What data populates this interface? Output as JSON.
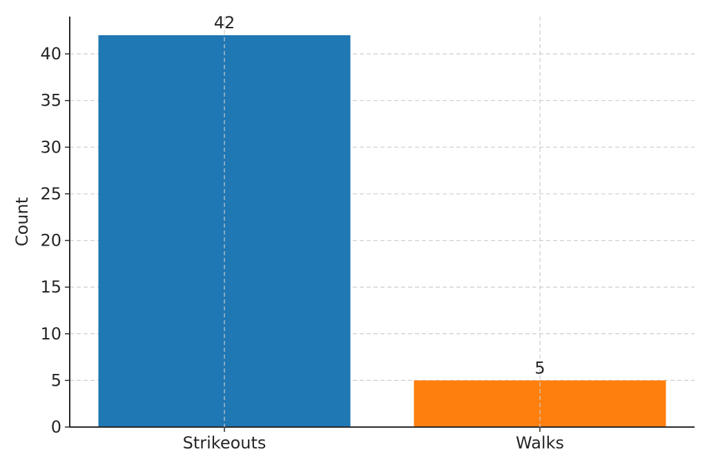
{
  "chart_data": {
    "type": "bar",
    "categories": [
      "Strikeouts",
      "Walks"
    ],
    "values": [
      42,
      5
    ],
    "colors": [
      "#1f77b4",
      "#ff7f0e"
    ],
    "xlabel": "",
    "ylabel": "Count",
    "ylim": [
      0,
      44
    ],
    "yticks": [
      0,
      5,
      10,
      15,
      20,
      25,
      30,
      35,
      40
    ],
    "data_labels": [
      "42",
      "5"
    ],
    "grid": true,
    "grid_color": "#cccccc",
    "axis_color": "#262626"
  }
}
